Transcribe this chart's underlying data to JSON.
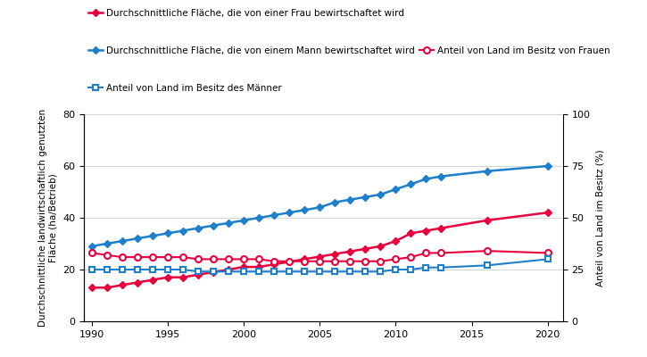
{
  "years": [
    1990,
    1991,
    1992,
    1993,
    1994,
    1995,
    1996,
    1997,
    1998,
    1999,
    2000,
    2001,
    2002,
    2003,
    2004,
    2005,
    2006,
    2007,
    2008,
    2009,
    2010,
    2011,
    2012,
    2013,
    2016,
    2020
  ],
  "frau_flaeche": [
    13,
    13,
    14,
    15,
    16,
    17,
    17,
    18,
    19,
    20,
    21,
    21,
    22,
    23,
    24,
    25,
    26,
    27,
    28,
    29,
    31,
    34,
    35,
    36,
    39,
    42
  ],
  "mann_flaeche": [
    29,
    30,
    31,
    32,
    33,
    34,
    35,
    36,
    37,
    38,
    39,
    40,
    41,
    42,
    43,
    44,
    46,
    47,
    48,
    49,
    51,
    53,
    55,
    56,
    58,
    60
  ],
  "frau_anteil": [
    33,
    32,
    31,
    31,
    31,
    31,
    31,
    30,
    30,
    30,
    30,
    30,
    29,
    29,
    29,
    29,
    29,
    29,
    29,
    29,
    30,
    31,
    33,
    33,
    34,
    33
  ],
  "mann_anteil": [
    25,
    25,
    25,
    25,
    25,
    25,
    25,
    24,
    24,
    24,
    24,
    24,
    24,
    24,
    24,
    24,
    24,
    24,
    24,
    24,
    25,
    25,
    26,
    26,
    27,
    30
  ],
  "color_red": "#e8003d",
  "color_blue": "#1e7fcb",
  "ylabel_left": "Durchschnittliche landwirtschaftlich genutzten\nFläche (ha/Betrieb)",
  "ylabel_right": "Anteil von Land im Besitz (%)",
  "xlim": [
    1989.5,
    2021
  ],
  "ylim_left": [
    0,
    80
  ],
  "ylim_right": [
    0,
    100
  ],
  "yticks_left": [
    0,
    20,
    40,
    60,
    80
  ],
  "yticks_right": [
    0,
    25,
    50,
    75,
    100
  ],
  "xticks": [
    1990,
    1995,
    2000,
    2005,
    2010,
    2015,
    2020
  ],
  "legend_frau_flaeche": "Durchschnittliche Fläche, die von einer Frau bewirtschaftet wird",
  "legend_mann_flaeche": "Durchschnittliche Fläche, die von einem Mann bewirtschaftet wird",
  "legend_frau_anteil": "Anteil von Land im Besitz von Frauen",
  "legend_mann_anteil": "Anteil von Land im Besitz des Männer"
}
